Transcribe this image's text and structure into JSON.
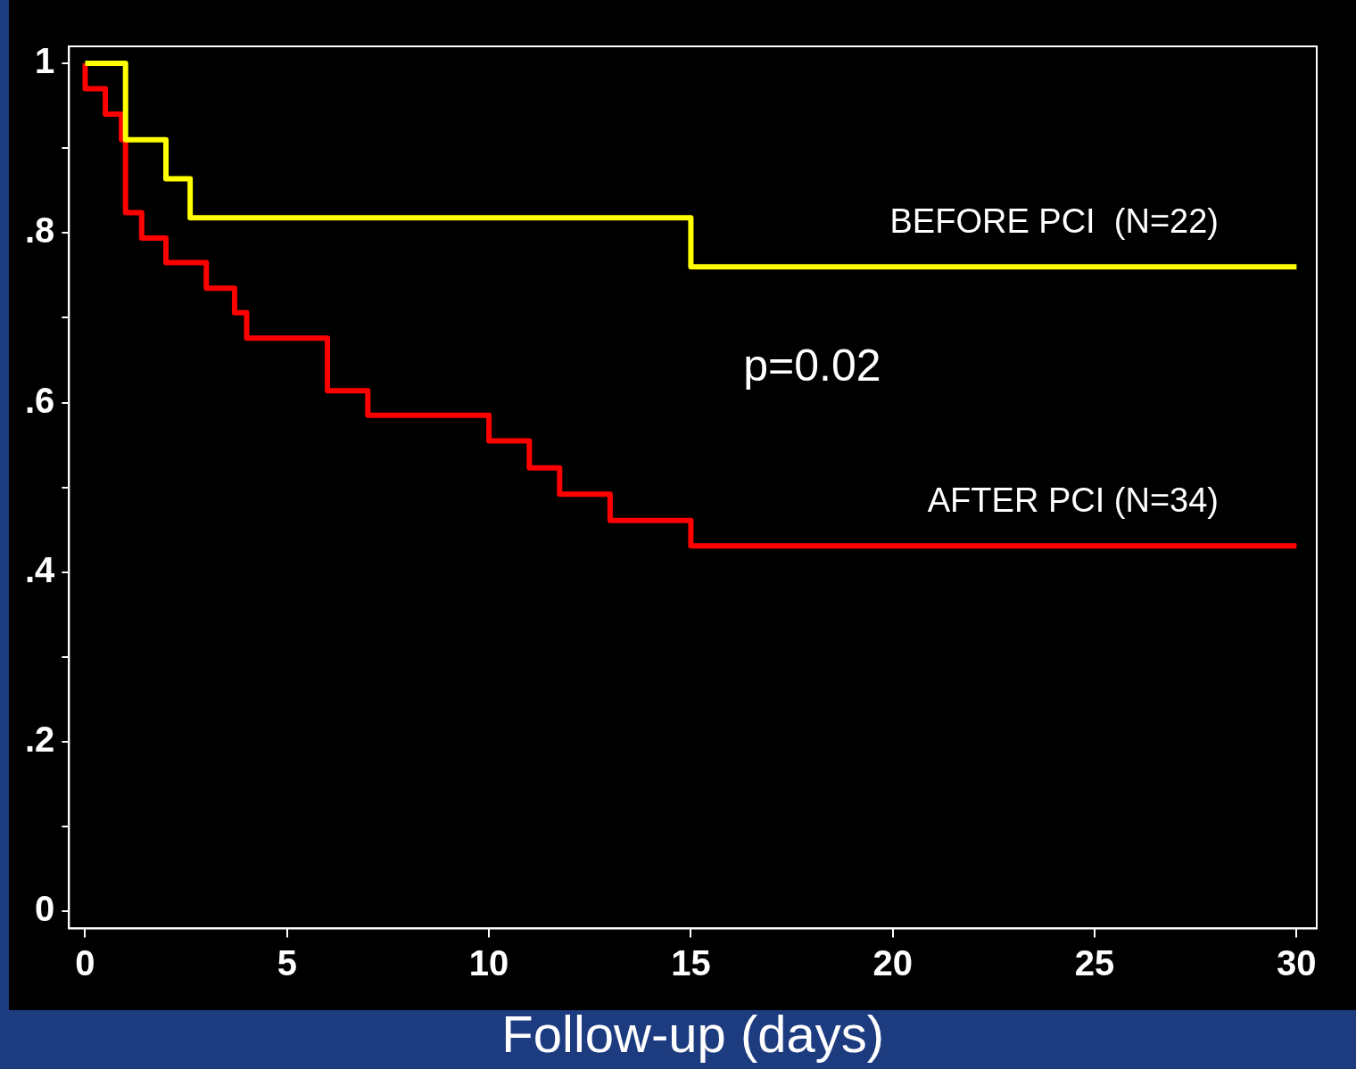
{
  "chart_data": {
    "type": "step",
    "xlabel": "Follow-up (days)",
    "xlim": [
      -0.4,
      30.5
    ],
    "xticks": [
      0,
      5,
      10,
      15,
      20,
      25,
      30
    ],
    "ylim": [
      -0.02,
      1.02
    ],
    "yticks": [
      {
        "value": 0,
        "label": "0"
      },
      {
        "value": 0.1,
        "label": null
      },
      {
        "value": 0.2,
        "label": ".2"
      },
      {
        "value": 0.3,
        "label": null
      },
      {
        "value": 0.4,
        "label": ".4"
      },
      {
        "value": 0.5,
        "label": null
      },
      {
        "value": 0.6,
        "label": ".6"
      },
      {
        "value": 0.7,
        "label": null
      },
      {
        "value": 0.8,
        "label": ".8"
      },
      {
        "value": 0.9,
        "label": null
      },
      {
        "value": 1,
        "label": "1"
      }
    ],
    "grid": false,
    "legend": false,
    "marker": "none",
    "line_style": "solid",
    "series": [
      {
        "name": "BEFORE PCI  (N=22)",
        "color": "#ffff00",
        "x": [
          0,
          1,
          2,
          2.6,
          15,
          30
        ],
        "values": [
          1,
          0.91,
          0.864,
          0.818,
          0.76,
          0.76
        ]
      },
      {
        "name": "AFTER PCI (N=34)",
        "color": "#ff0000",
        "x": [
          0,
          0,
          0.5,
          0.9,
          1,
          1.4,
          2,
          3,
          3.7,
          4,
          6,
          7,
          10,
          11,
          11.75,
          13,
          15,
          30
        ],
        "values": [
          1,
          0.97,
          0.94,
          0.91,
          0.824,
          0.794,
          0.765,
          0.735,
          0.706,
          0.676,
          0.614,
          0.585,
          0.555,
          0.523,
          0.492,
          0.461,
          0.431,
          0.431
        ]
      }
    ],
    "annotations": [
      "p=0.02"
    ]
  }
}
